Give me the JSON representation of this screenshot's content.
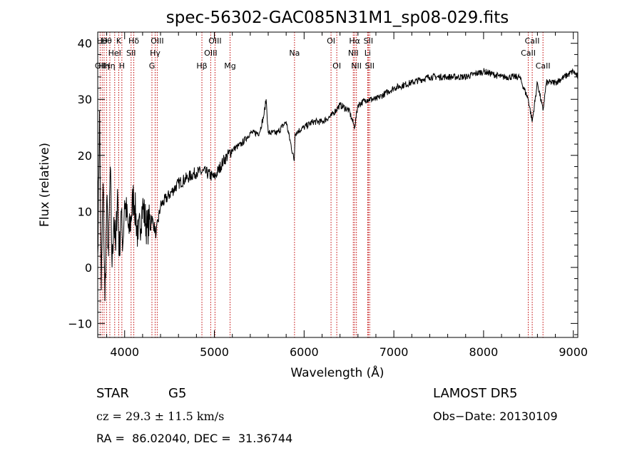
{
  "chart_data": {
    "type": "line",
    "title": "spec-56302-GAC085N31M1_sp08-029.fits",
    "xlabel": "Wavelength (Å)",
    "ylabel": "Flux (relative)",
    "xlim": [
      3700,
      9050
    ],
    "ylim": [
      -12.5,
      42
    ],
    "xticks": [
      4000,
      5000,
      6000,
      7000,
      8000,
      9000
    ],
    "yticks": [
      -10,
      0,
      10,
      20,
      30,
      40
    ],
    "xtick_labels": [
      "4000",
      "5000",
      "6000",
      "7000",
      "8000",
      "9000"
    ],
    "ytick_labels": [
      "−10",
      "0",
      "10",
      "20",
      "30",
      "40"
    ],
    "line_color": "#000000",
    "marker_color": "#c00000",
    "series": [
      {
        "x": [
          3700,
          3720,
          3740,
          3760,
          3780,
          3800,
          3820,
          3840,
          3860,
          3880,
          3900,
          3920,
          3940,
          3960,
          3980,
          4000,
          4050,
          4100,
          4150,
          4200,
          4250,
          4300,
          4350,
          4400,
          4500,
          4600,
          4700,
          4800,
          4900,
          5000,
          5100,
          5200,
          5300,
          5400,
          5500,
          5550,
          5577,
          5600,
          5700,
          5800,
          5890,
          5900,
          6000,
          6100,
          6200,
          6300,
          6400,
          6500,
          6563,
          6600,
          6700,
          6800,
          6900,
          7000,
          7200,
          7400,
          7600,
          7800,
          8000,
          8200,
          8400,
          8498,
          8542,
          8600,
          8662,
          8700,
          8800,
          8900,
          9000,
          9050
        ],
        "y": [
          2,
          28,
          -4,
          15,
          -6,
          12,
          2,
          18,
          0,
          9,
          3,
          14,
          2,
          10,
          4,
          12,
          6,
          13,
          5,
          11,
          7,
          9,
          6,
          11,
          13,
          15,
          16,
          17,
          17,
          16,
          19,
          21,
          22,
          24,
          24,
          27,
          30,
          24,
          24,
          26,
          19,
          24,
          25,
          26,
          26,
          27,
          29,
          28,
          25,
          29,
          30,
          30,
          31,
          32,
          33,
          34,
          34,
          34,
          35,
          34,
          34,
          30,
          26,
          33,
          28,
          33,
          33,
          34,
          35,
          34
        ]
      }
    ],
    "lines": [
      {
        "x": 3727,
        "label": "OII",
        "row": 3
      },
      {
        "x": 3750,
        "label": "Hθ",
        "row": 1
      },
      {
        "x": 3771,
        "label": "Hη",
        "row": 3
      },
      {
        "x": 3798,
        "label": "Hθ",
        "row": 1
      },
      {
        "x": 3835,
        "label": "Hη",
        "row": 3
      },
      {
        "x": 3889,
        "label": "HeI",
        "row": 2
      },
      {
        "x": 3934,
        "label": "K",
        "row": 1
      },
      {
        "x": 3969,
        "label": "H",
        "row": 3
      },
      {
        "x": 4072,
        "label": "SII",
        "row": 2
      },
      {
        "x": 4102,
        "label": "Hδ",
        "row": 1
      },
      {
        "x": 4304,
        "label": "G",
        "row": 3
      },
      {
        "x": 4340,
        "label": "Hγ",
        "row": 2
      },
      {
        "x": 4363,
        "label": "OIII",
        "row": 1
      },
      {
        "x": 4861,
        "label": "Hβ",
        "row": 3
      },
      {
        "x": 4959,
        "label": "OIII",
        "row": 2
      },
      {
        "x": 5007,
        "label": "OIII",
        "row": 1
      },
      {
        "x": 5175,
        "label": "Mg",
        "row": 3
      },
      {
        "x": 5893,
        "label": "Na",
        "row": 2
      },
      {
        "x": 6300,
        "label": "OI",
        "row": 1
      },
      {
        "x": 6364,
        "label": "OI",
        "row": 3
      },
      {
        "x": 6548,
        "label": "NII",
        "row": 2
      },
      {
        "x": 6563,
        "label": "Hα",
        "row": 1
      },
      {
        "x": 6583,
        "label": "NII",
        "row": 3
      },
      {
        "x": 6708,
        "label": "Li",
        "row": 2
      },
      {
        "x": 6716,
        "label": "SII",
        "row": 1
      },
      {
        "x": 6731,
        "label": "SII",
        "row": 3
      },
      {
        "x": 8498,
        "label": "CaII",
        "row": 2
      },
      {
        "x": 8542,
        "label": "CaII",
        "row": 1
      },
      {
        "x": 8662,
        "label": "CaII",
        "row": 3
      }
    ]
  },
  "info": {
    "class_label": "STAR",
    "subclass": "G5",
    "survey": "LAMOST DR5",
    "redshift": "cz = 29.3 ± 11.5 km/s",
    "obs_date": "Obs−Date: 20130109",
    "coords": "RA =  86.02040, DEC =  31.36744"
  }
}
